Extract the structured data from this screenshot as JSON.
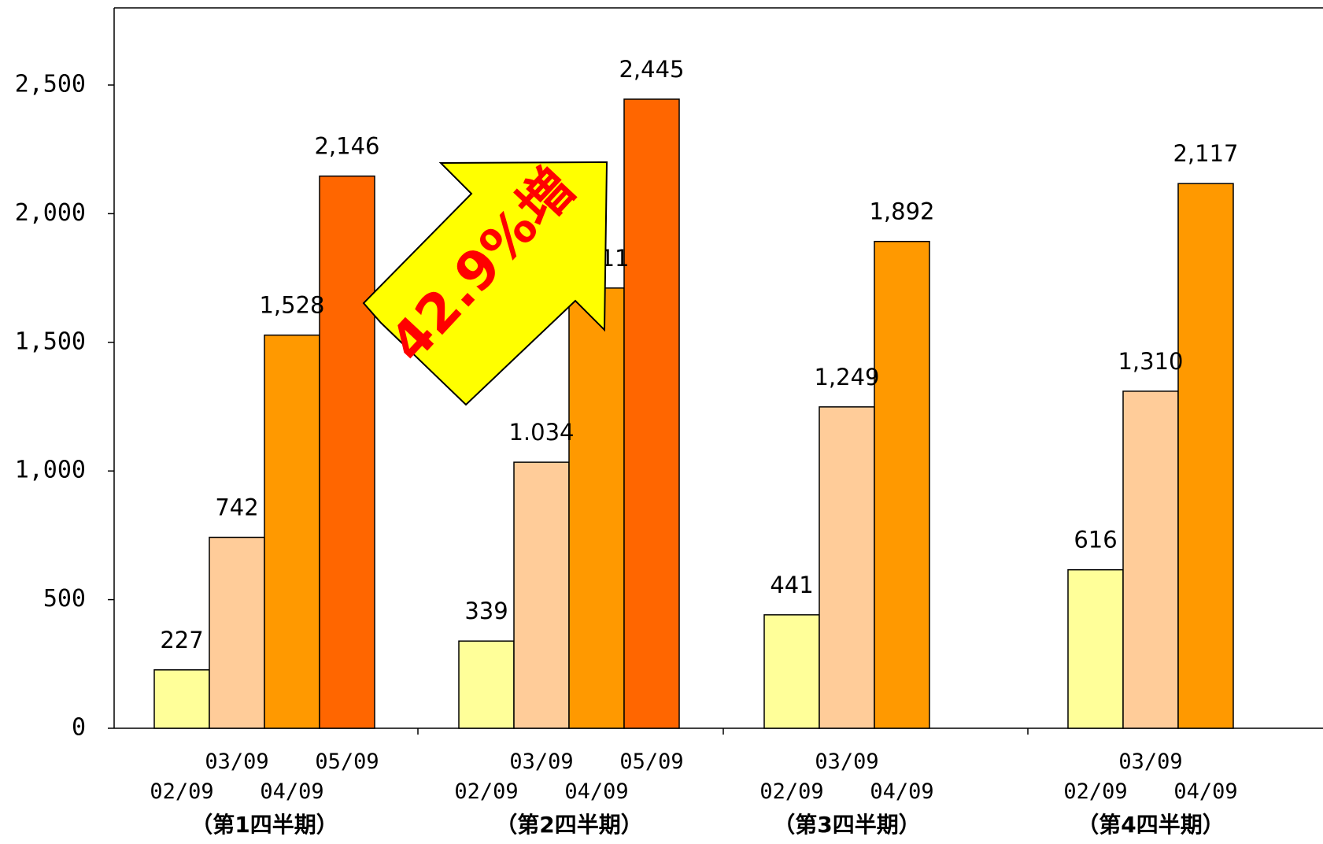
{
  "chart_data": {
    "type": "bar",
    "ylim": [
      0,
      2800
    ],
    "yticks": [
      0,
      500,
      1000,
      1500,
      2000,
      2500
    ],
    "ytick_labels": [
      "0",
      "500",
      "1,000",
      "1,500",
      "2,000",
      "2,500"
    ],
    "groups": [
      {
        "label": "（第1四半期）",
        "bars": [
          {
            "period": "02/09",
            "value": 227,
            "label": "227"
          },
          {
            "period": "03/09",
            "value": 742,
            "label": "742"
          },
          {
            "period": "04/09",
            "value": 1528,
            "label": "1,528"
          },
          {
            "period": "05/09",
            "value": 2146,
            "label": "2,146"
          }
        ]
      },
      {
        "label": "（第2四半期）",
        "bars": [
          {
            "period": "02/09",
            "value": 339,
            "label": "339"
          },
          {
            "period": "03/09",
            "value": 1034,
            "label": "1.034"
          },
          {
            "period": "04/09",
            "value": 1711,
            "label": "1,711"
          },
          {
            "period": "05/09",
            "value": 2445,
            "label": "2,445"
          }
        ]
      },
      {
        "label": "（第3四半期）",
        "bars": [
          {
            "period": "02/09",
            "value": 441,
            "label": "441"
          },
          {
            "period": "03/09",
            "value": 1249,
            "label": "1,249"
          },
          {
            "period": "04/09",
            "value": 1892,
            "label": "1,892"
          }
        ]
      },
      {
        "label": "（第4四半期）",
        "bars": [
          {
            "period": "02/09",
            "value": 616,
            "label": "616"
          },
          {
            "period": "03/09",
            "value": 1310,
            "label": "1,310"
          },
          {
            "period": "04/09",
            "value": 2117,
            "label": "2,117"
          }
        ]
      }
    ],
    "series_colors": {
      "02/09": "#ffff99",
      "03/09": "#ffcc99",
      "04/09": "#ff9900",
      "05/09": "#ff6600"
    },
    "grid": false,
    "annotation": {
      "text": "42.9%増",
      "arrow_color": "#ffff00",
      "text_color": "#ff0000"
    }
  }
}
